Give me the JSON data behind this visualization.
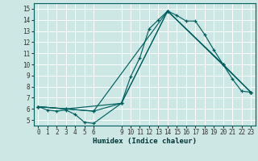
{
  "xlabel": "Humidex (Indice chaleur)",
  "bg_color": "#cde8e4",
  "grid_color": "#ffffff",
  "line_color": "#006060",
  "xlim": [
    -0.5,
    23.5
  ],
  "ylim": [
    4.5,
    15.5
  ],
  "yticks": [
    5,
    6,
    7,
    8,
    9,
    10,
    11,
    12,
    13,
    14,
    15
  ],
  "xtick_positions": [
    0,
    1,
    2,
    3,
    4,
    5,
    6,
    9,
    10,
    11,
    12,
    13,
    14,
    15,
    16,
    17,
    18,
    19,
    20,
    21,
    22,
    23
  ],
  "xtick_labels": [
    "0",
    "1",
    "2",
    "3",
    "4",
    "5",
    "6",
    "9",
    "10",
    "11",
    "12",
    "13",
    "14",
    "15",
    "16",
    "17",
    "18",
    "19",
    "20",
    "21",
    "22",
    "23"
  ],
  "curves": [
    {
      "x": [
        0,
        1,
        2,
        3,
        4,
        5,
        6,
        9,
        10,
        11,
        12,
        13,
        14,
        15,
        16,
        17,
        18,
        19,
        20,
        21,
        22,
        23
      ],
      "y": [
        6.2,
        5.9,
        5.8,
        5.9,
        5.5,
        4.8,
        4.7,
        6.5,
        8.9,
        10.6,
        13.2,
        14.0,
        14.8,
        14.4,
        13.9,
        13.9,
        12.7,
        11.3,
        10.0,
        8.7,
        7.6,
        7.5
      ]
    },
    {
      "x": [
        0,
        3,
        6,
        9,
        14,
        20,
        23
      ],
      "y": [
        6.2,
        6.0,
        5.8,
        6.5,
        14.8,
        10.0,
        7.5
      ]
    },
    {
      "x": [
        0,
        3,
        9,
        14,
        20,
        23
      ],
      "y": [
        6.2,
        6.0,
        6.5,
        14.8,
        10.0,
        7.5
      ]
    },
    {
      "x": [
        0,
        6,
        14,
        23
      ],
      "y": [
        6.2,
        5.8,
        14.8,
        7.5
      ]
    }
  ]
}
